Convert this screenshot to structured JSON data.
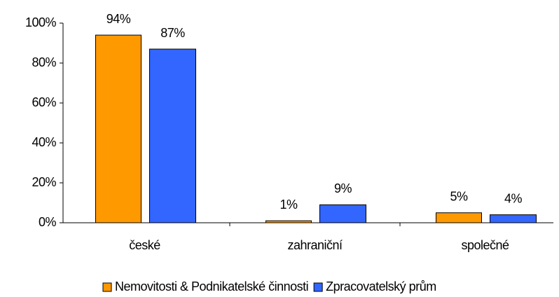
{
  "chart_data": {
    "type": "bar",
    "categories": [
      "české",
      "zahraniční",
      "společné"
    ],
    "series": [
      {
        "name": "Nemovitosti & Podnikatelské činnosti",
        "color": "#ff9900",
        "values": [
          94,
          1,
          5
        ],
        "value_labels": [
          "94%",
          "1%",
          "5%"
        ]
      },
      {
        "name": "Zpracovatelský prům",
        "color": "#3366ff",
        "values": [
          87,
          9,
          4
        ],
        "value_labels": [
          "87%",
          "9%",
          "4%"
        ]
      }
    ],
    "ylim": [
      0,
      100
    ],
    "yticks": [
      {
        "value": 0,
        "label": "0%"
      },
      {
        "value": 20,
        "label": "20%"
      },
      {
        "value": 40,
        "label": "40%"
      },
      {
        "value": 60,
        "label": "60%"
      },
      {
        "value": 80,
        "label": "80%"
      },
      {
        "value": 100,
        "label": "100%"
      }
    ],
    "grid": false,
    "legend": "bottom"
  }
}
